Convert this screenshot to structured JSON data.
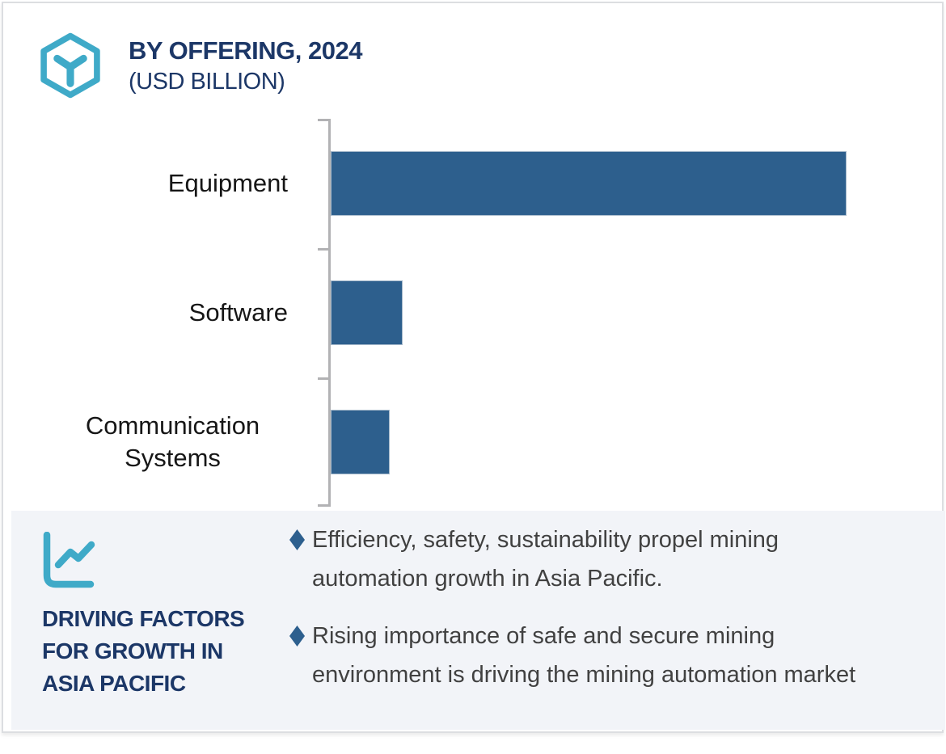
{
  "header": {
    "logo_icon": "hexagon-cube-icon",
    "title": "BY OFFERING, 2024",
    "subtitle": "(USD BILLION)"
  },
  "chart_data": {
    "type": "bar",
    "orientation": "horizontal",
    "title": "BY OFFERING, 2024",
    "subtitle": "(USD BILLION)",
    "unit": "USD BILLION",
    "categories": [
      "Equipment",
      "Software",
      "Communication Systems"
    ],
    "values": [
      100,
      14,
      11.4
    ],
    "value_scale": "relative bar length, % of longest bar (axis has no numeric tick labels in source)",
    "xlabel": "",
    "ylabel": "",
    "grid": false,
    "legend": false,
    "bar_color": "#2d5f8d",
    "axis_color": "#b2b2b4"
  },
  "driving_factors": {
    "icon": "line-chart-icon",
    "heading": "DRIVING FACTORS FOR GROWTH IN ASIA PACIFIC",
    "bullet_marker_icon": "diamond-icon",
    "bullets": [
      "Efficiency, safety, sustainability propel mining automation growth in Asia Pacific.",
      "Rising importance of safe and secure mining environment is driving the mining automation market"
    ]
  },
  "colors": {
    "accent_teal": "#3faac8",
    "navy": "#1c3767",
    "bar_blue": "#2d5f8d",
    "panel_background": "#f2f4f8",
    "body_text": "#414141"
  }
}
